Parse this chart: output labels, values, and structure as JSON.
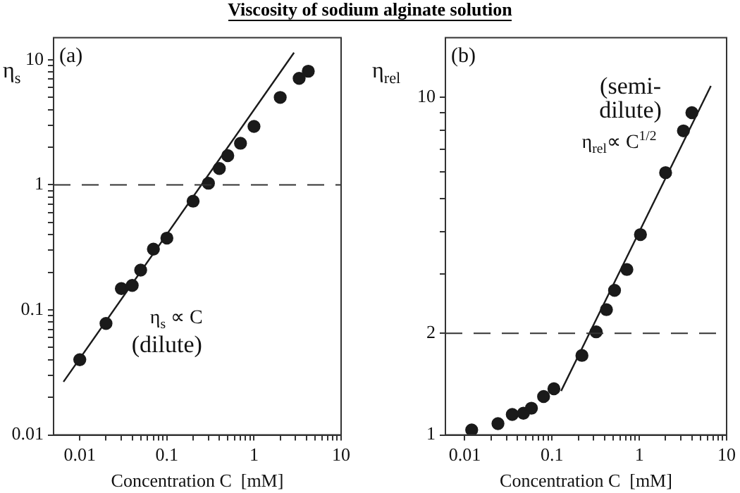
{
  "chart_data": [
    {
      "type": "scatter",
      "title": "Viscosity of sodium alginate solution",
      "xlabel": "Concentration C  [mM]",
      "ylabel": "η$_{s}$",
      "log": "xy",
      "grid": false,
      "legend": false,
      "xlim": [
        0.005,
        10
      ],
      "ylim": [
        0.01,
        15
      ],
      "xticks": [
        0.01,
        {
          "value": 0.02,
          "label": null
        },
        {
          "value": 0.03,
          "label": null
        },
        {
          "value": 0.04,
          "label": null
        },
        {
          "value": 0.05,
          "label": null
        },
        {
          "value": 0.06,
          "label": null
        },
        {
          "value": 0.07,
          "label": null
        },
        {
          "value": 0.08,
          "label": null
        },
        {
          "value": 0.09,
          "label": null
        },
        0.1,
        {
          "value": 0.2,
          "label": null
        },
        {
          "value": 0.3,
          "label": null
        },
        {
          "value": 0.4,
          "label": null
        },
        {
          "value": 0.5,
          "label": null
        },
        {
          "value": 0.6,
          "label": null
        },
        {
          "value": 0.7,
          "label": null
        },
        {
          "value": 0.8,
          "label": null
        },
        {
          "value": 0.9,
          "label": null
        },
        1,
        {
          "value": 2,
          "label": null
        },
        {
          "value": 3,
          "label": null
        },
        {
          "value": 4,
          "label": null
        },
        {
          "value": 5,
          "label": null
        },
        {
          "value": 6,
          "label": null
        },
        {
          "value": 7,
          "label": null
        },
        {
          "value": 8,
          "label": null
        },
        {
          "value": 9,
          "label": null
        },
        10
      ],
      "yticks": [
        0.01,
        {
          "value": 0.02,
          "label": null
        },
        {
          "value": 0.03,
          "label": null
        },
        {
          "value": 0.04,
          "label": null
        },
        {
          "value": 0.05,
          "label": null
        },
        {
          "value": 0.06,
          "label": null
        },
        {
          "value": 0.07,
          "label": null
        },
        {
          "value": 0.08,
          "label": null
        },
        {
          "value": 0.09,
          "label": null
        },
        0.1,
        {
          "value": 0.2,
          "label": null
        },
        {
          "value": 0.3,
          "label": null
        },
        {
          "value": 0.4,
          "label": null
        },
        {
          "value": 0.5,
          "label": null
        },
        {
          "value": 0.6,
          "label": null
        },
        {
          "value": 0.7,
          "label": null
        },
        {
          "value": 0.8,
          "label": null
        },
        {
          "value": 0.9,
          "label": null
        },
        1,
        {
          "value": 2,
          "label": null
        },
        {
          "value": 3,
          "label": null
        },
        {
          "value": 4,
          "label": null
        },
        {
          "value": 5,
          "label": null
        },
        {
          "value": 6,
          "label": null
        },
        {
          "value": 7,
          "label": null
        },
        {
          "value": 8,
          "label": null
        },
        {
          "value": 9,
          "label": null
        },
        10
      ],
      "series": [
        {
          "marker": "circle",
          "color": "#1a1a1a",
          "x": [
            0.01,
            0.02,
            0.03,
            0.04,
            0.05,
            0.07,
            0.1,
            0.2,
            0.3,
            0.4,
            0.5,
            0.7,
            1,
            2,
            3.3,
            4.2
          ],
          "values": [
            0.04,
            0.078,
            0.148,
            0.157,
            0.208,
            0.306,
            0.375,
            0.74,
            1.03,
            1.35,
            1.71,
            2.15,
            2.93,
            5.0,
            7.1,
            8.1
          ]
        },
        {
          "type": "line",
          "marker": "none",
          "line_style": "solid",
          "color": "#1a1a1a",
          "x": [
            0.0065,
            2.88
          ],
          "values": [
            0.0266,
            11.4
          ]
        }
      ],
      "ref_lines": [
        {
          "axis": "y",
          "value": 1,
          "line_style": "dashed",
          "color": "#333333"
        }
      ],
      "annotations": [
        "(a)",
        "η$_{s}$ ∝ C",
        "(dilute)"
      ]
    },
    {
      "type": "scatter",
      "xlabel": "Concentration C  [mM]",
      "ylabel": "η$_{rel}$",
      "log": "xy",
      "grid": false,
      "legend": false,
      "xlim": [
        0.006,
        10
      ],
      "ylim": [
        1,
        15
      ],
      "xticks": [
        0.01,
        {
          "value": 0.02,
          "label": null
        },
        {
          "value": 0.03,
          "label": null
        },
        {
          "value": 0.04,
          "label": null
        },
        {
          "value": 0.05,
          "label": null
        },
        {
          "value": 0.06,
          "label": null
        },
        {
          "value": 0.07,
          "label": null
        },
        {
          "value": 0.08,
          "label": null
        },
        {
          "value": 0.09,
          "label": null
        },
        0.1,
        {
          "value": 0.2,
          "label": null
        },
        {
          "value": 0.3,
          "label": null
        },
        {
          "value": 0.4,
          "label": null
        },
        {
          "value": 0.5,
          "label": null
        },
        {
          "value": 0.6,
          "label": null
        },
        {
          "value": 0.7,
          "label": null
        },
        {
          "value": 0.8,
          "label": null
        },
        {
          "value": 0.9,
          "label": null
        },
        1,
        {
          "value": 2,
          "label": null
        },
        {
          "value": 3,
          "label": null
        },
        {
          "value": 4,
          "label": null
        },
        {
          "value": 5,
          "label": null
        },
        {
          "value": 6,
          "label": null
        },
        {
          "value": 7,
          "label": null
        },
        {
          "value": 8,
          "label": null
        },
        {
          "value": 9,
          "label": null
        },
        10
      ],
      "yticks": [
        1,
        2,
        {
          "value": 3,
          "label": null
        },
        {
          "value": 4,
          "label": null
        },
        {
          "value": 5,
          "label": null
        },
        {
          "value": 6,
          "label": null
        },
        {
          "value": 7,
          "label": null
        },
        {
          "value": 8,
          "label": null
        },
        {
          "value": 9,
          "label": null
        },
        10
      ],
      "series": [
        {
          "marker": "circle",
          "color": "#1a1a1a",
          "x": [
            0.012,
            0.024,
            0.035,
            0.047,
            0.058,
            0.08,
            0.105,
            0.22,
            0.32,
            0.42,
            0.52,
            0.72,
            1.03,
            2.0,
            3.2,
            4.0
          ],
          "values": [
            1.035,
            1.08,
            1.15,
            1.16,
            1.2,
            1.3,
            1.37,
            1.72,
            2.02,
            2.35,
            2.68,
            3.09,
            3.92,
            5.98,
            7.95,
            9.0
          ]
        },
        {
          "type": "line",
          "marker": "none",
          "line_style": "solid",
          "color": "#1a1a1a",
          "x": [
            0.127,
            6.6
          ],
          "values": [
            1.35,
            10.8
          ]
        }
      ],
      "ref_lines": [
        {
          "axis": "y",
          "value": 2,
          "line_style": "dashed",
          "color": "#333333"
        }
      ],
      "annotations": [
        "(b)",
        "(semi-",
        "dilute)",
        "η$_{rel}$∝ C$^{1/2}$"
      ]
    }
  ]
}
